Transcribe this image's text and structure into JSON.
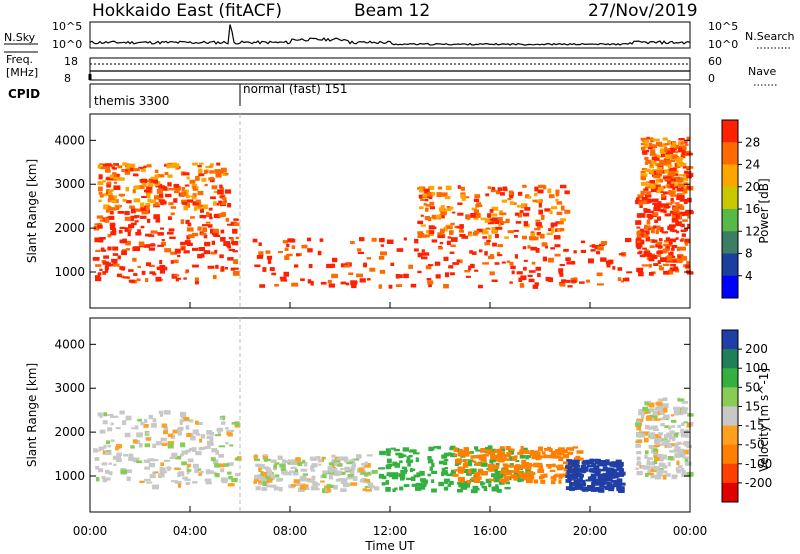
{
  "header": {
    "station": "Hokkaido East (fitACF)",
    "beam": "Beam 12",
    "date": "27/Nov/2019"
  },
  "strip_labels": {
    "nsky": "N.Sky",
    "freq_line1": "Freq.",
    "freq_line2": "[MHz]",
    "cpid": "CPID",
    "nsearch": "N.Search",
    "nave": "Nave"
  },
  "strip_ticks": {
    "nsky_top": "10^5",
    "nsky_bottom": "10^0",
    "freq_top": "18",
    "freq_bottom": "8",
    "nave_top": "60",
    "nave_bottom": "0"
  },
  "cpid_segments": [
    {
      "name": "themis 3300",
      "start_hour": 0.0
    },
    {
      "name": "normal (fast) 151",
      "start_hour": 6.0
    }
  ],
  "chart_data": [
    {
      "type": "heatmap",
      "quantity": "power",
      "ylabel": "Slant Range [km]",
      "ylim": [
        180,
        4600
      ],
      "yticks": [
        1000,
        2000,
        3000,
        4000
      ],
      "xlim": [
        0,
        24
      ],
      "colorbar": {
        "label": "Power [dB]",
        "ticks": [
          "4",
          "8",
          "12",
          "16",
          "20",
          "24",
          "28"
        ],
        "colors": [
          "#0000ff",
          "#1a3fa0",
          "#3c7d63",
          "#58b948",
          "#c8c800",
          "#ffa500",
          "#ff6a00",
          "#ff2000"
        ]
      },
      "regions": [
        {
          "t0": 0.1,
          "t1": 5.9,
          "r0": 800,
          "r1": 2500,
          "level": 28
        },
        {
          "t0": 0.3,
          "t1": 5.5,
          "r0": 2500,
          "r1": 3500,
          "level": 24
        },
        {
          "t0": 6.5,
          "t1": 21.5,
          "r0": 700,
          "r1": 1800,
          "level": 28
        },
        {
          "t0": 13.0,
          "t1": 19.0,
          "r0": 1800,
          "r1": 3000,
          "level": 24
        },
        {
          "t0": 21.8,
          "t1": 23.9,
          "r0": 1000,
          "r1": 2800,
          "level": 28
        },
        {
          "t0": 22.0,
          "t1": 23.9,
          "r0": 2800,
          "r1": 4100,
          "level": 24
        }
      ]
    },
    {
      "type": "heatmap",
      "quantity": "velocity",
      "ylabel": "Slant Range [km]",
      "ylim": [
        180,
        4600
      ],
      "yticks": [
        1000,
        2000,
        3000,
        4000
      ],
      "xlim": [
        0,
        24
      ],
      "xticks": [
        "00:00",
        "04:00",
        "08:00",
        "12:00",
        "16:00",
        "20:00",
        "00:00"
      ],
      "xlabel": "Time UT",
      "colorbar": {
        "label": "Velocity [m s^-1]",
        "ticks": [
          "200",
          "100",
          "50",
          "15",
          "-15",
          "-50",
          "-100",
          "-200"
        ],
        "colors": [
          "#1f3fa6",
          "#1e7f5a",
          "#33b040",
          "#88cc55",
          "#c8c8c8",
          "#ffa020",
          "#ff8000",
          "#ff4000",
          "#e00000"
        ]
      },
      "regions": [
        {
          "t0": 0.1,
          "t1": 5.9,
          "r0": 800,
          "r1": 2500,
          "level": 0
        },
        {
          "t0": 6.5,
          "t1": 11.5,
          "r0": 700,
          "r1": 1500,
          "level": 0
        },
        {
          "t0": 11.5,
          "t1": 17.5,
          "r0": 700,
          "r1": 1700,
          "level": 60
        },
        {
          "t0": 14.5,
          "t1": 19.5,
          "r0": 900,
          "r1": 1700,
          "level": -60
        },
        {
          "t0": 19.0,
          "t1": 21.2,
          "r0": 700,
          "r1": 1400,
          "level": 220
        },
        {
          "t0": 21.8,
          "t1": 23.9,
          "r0": 1000,
          "r1": 2800,
          "level": 0
        }
      ]
    }
  ]
}
